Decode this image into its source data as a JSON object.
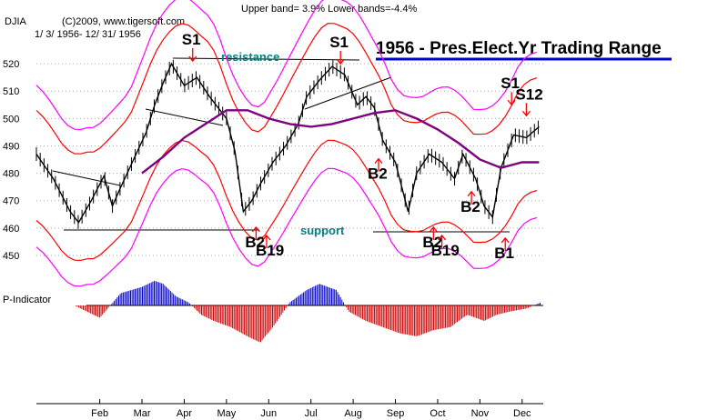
{
  "header": {
    "bands": "Upper band= 3.9%  Lower bands=-4.4%",
    "symbol": "DJIA",
    "copyright": "(C)2009, www.tigersoft.com",
    "date_range": "1/ 3/ 1956- 12/ 31/ 1956",
    "title": "1956 - Pres.Elect.Yr Trading Range"
  },
  "annotations": {
    "resistance": "resistance",
    "support": "support",
    "p_indicator": "P-Indicator"
  },
  "colors": {
    "price": "#000000",
    "band_inner": "#ff0000",
    "band_outer": "#ff00ff",
    "moving_avg": "#800080",
    "p_indicator_pos": "#0000cc",
    "p_indicator_neg": "#cc0000",
    "signal_arrow": "#ff0000",
    "title_underline": "#0000cc",
    "annotation": "#008080"
  },
  "chart_data": {
    "type": "line",
    "title": "1956 - Pres.Elect.Yr Trading Range",
    "y_ticks": [
      450,
      460,
      470,
      480,
      490,
      500,
      510,
      520
    ],
    "ylim": [
      445,
      530
    ],
    "x_ticks": [
      "Feb",
      "Mar",
      "Apr",
      "May",
      "Jun",
      "Jul",
      "Aug",
      "Sep",
      "Oct",
      "Nov",
      "Dec"
    ],
    "x_domain": [
      0,
      12
    ],
    "x_tick_positions": [
      1.5,
      2.5,
      3.5,
      4.5,
      5.5,
      6.5,
      7.5,
      8.5,
      9.5,
      10.5,
      11.5
    ],
    "series": [
      {
        "name": "DJIA",
        "x": [
          0.0,
          0.4,
          0.8,
          1.0,
          1.3,
          1.6,
          1.8,
          2.0,
          2.3,
          2.6,
          2.8,
          3.0,
          3.2,
          3.5,
          3.8,
          4.1,
          4.5,
          4.7,
          4.9,
          5.1,
          5.3,
          5.6,
          5.9,
          6.2,
          6.4,
          6.7,
          7.0,
          7.3,
          7.6,
          7.8,
          8.0,
          8.2,
          8.5,
          8.8,
          9.0,
          9.3,
          9.6,
          9.9,
          10.1,
          10.4,
          10.6,
          10.8,
          11.0,
          11.3,
          11.6,
          11.9
        ],
        "values": [
          487,
          478,
          466,
          462,
          470,
          479,
          468,
          475,
          485,
          495,
          505,
          513,
          520,
          512,
          515,
          508,
          500,
          488,
          466,
          470,
          476,
          484,
          490,
          498,
          508,
          514,
          519,
          516,
          505,
          508,
          504,
          492,
          484,
          466,
          480,
          487,
          484,
          478,
          487,
          478,
          468,
          464,
          482,
          494,
          493,
          497
        ]
      },
      {
        "name": "Moving Average",
        "x": [
          2.5,
          3.0,
          3.5,
          4.0,
          4.5,
          5.0,
          5.5,
          6.0,
          6.5,
          7.0,
          7.5,
          8.0,
          8.5,
          9.0,
          9.5,
          10.0,
          10.5,
          11.0,
          11.5,
          11.9
        ],
        "values": [
          480,
          486,
          493,
          498,
          503,
          503,
          500,
          498,
          497,
          498,
          500,
          502,
          503,
          500,
          496,
          491,
          485,
          482,
          484,
          484
        ]
      }
    ],
    "signals": [
      {
        "label": "S1",
        "x": 3.7,
        "y": 527
      },
      {
        "label": "S1",
        "x": 7.2,
        "y": 526
      },
      {
        "label": "B2",
        "x": 8.1,
        "y": 478
      },
      {
        "label": "B2",
        "x": 5.2,
        "y": 453
      },
      {
        "label": "B19",
        "x": 5.45,
        "y": 450
      },
      {
        "label": "B2",
        "x": 9.4,
        "y": 453
      },
      {
        "label": "B19",
        "x": 9.6,
        "y": 450
      },
      {
        "label": "B2",
        "x": 10.3,
        "y": 466
      },
      {
        "label": "B1",
        "x": 11.1,
        "y": 449
      },
      {
        "label": "S1",
        "x": 11.25,
        "y": 511
      },
      {
        "label": "S12",
        "x": 11.6,
        "y": 507
      }
    ],
    "p_indicator": {
      "x": [
        0.9,
        1.5,
        2.0,
        2.5,
        2.8,
        3.0,
        3.3,
        3.6,
        3.9,
        4.2,
        4.6,
        5.0,
        5.3,
        5.6,
        6.0,
        6.4,
        6.7,
        7.1,
        7.4,
        7.8,
        8.2,
        8.6,
        9.0,
        9.4,
        9.8,
        10.2,
        10.6,
        10.9,
        11.2,
        11.6,
        11.95
      ],
      "values": [
        0,
        -8,
        8,
        12,
        16,
        14,
        6,
        2,
        -6,
        -10,
        -14,
        -20,
        -24,
        -14,
        2,
        10,
        14,
        10,
        -4,
        -10,
        -14,
        -18,
        -20,
        -16,
        -14,
        -6,
        -10,
        -6,
        -4,
        -2,
        2
      ]
    },
    "legend": "none",
    "grid": "dotted-horizontal"
  }
}
